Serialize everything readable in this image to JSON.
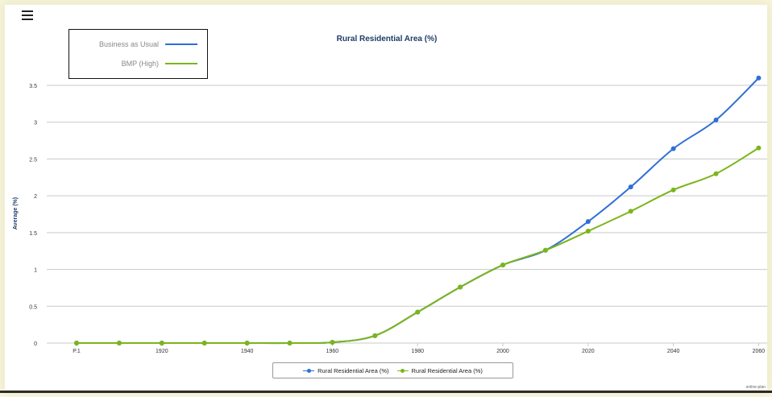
{
  "menu": {
    "icon": "hamburger-menu-icon"
  },
  "credit": "online-plan",
  "chart_data": {
    "type": "line",
    "title": "Rural Residential Area (%)",
    "xlabel": "",
    "ylabel": "Average (%)",
    "x_tick_labels": [
      "P.1",
      "1920",
      "1940",
      "1960",
      "1980",
      "2000",
      "2020",
      "2040",
      "2060"
    ],
    "x_tick_positions": [
      1900,
      1920,
      1940,
      1960,
      1980,
      2000,
      2020,
      2040,
      2060
    ],
    "y_ticks": [
      "0",
      "0.5",
      "1",
      "1.5",
      "2",
      "2.5",
      "3",
      "3.5"
    ],
    "ylim": [
      0,
      3.5
    ],
    "grid": true,
    "legend_position": "top-left",
    "x": [
      1900,
      1910,
      1920,
      1930,
      1940,
      1950,
      1960,
      1970,
      1980,
      1990,
      2000,
      2010,
      2020,
      2030,
      2040,
      2050,
      2060
    ],
    "series": [
      {
        "name": "Business as Usual",
        "bottom_legend_name": "Rural Residential Area (%)",
        "color": "#2f6fd6",
        "values": [
          0,
          0,
          0,
          0,
          0,
          0,
          0.01,
          0.1,
          0.42,
          0.76,
          1.06,
          1.26,
          1.65,
          2.12,
          2.64,
          3.03,
          3.6
        ]
      },
      {
        "name": "BMP (High)",
        "bottom_legend_name": "Rural Residential Area (%)",
        "color": "#7bb51a",
        "values": [
          0,
          0,
          0,
          0,
          0,
          0,
          0.01,
          0.1,
          0.42,
          0.76,
          1.06,
          1.26,
          1.52,
          1.79,
          2.08,
          2.3,
          2.65
        ]
      }
    ]
  }
}
